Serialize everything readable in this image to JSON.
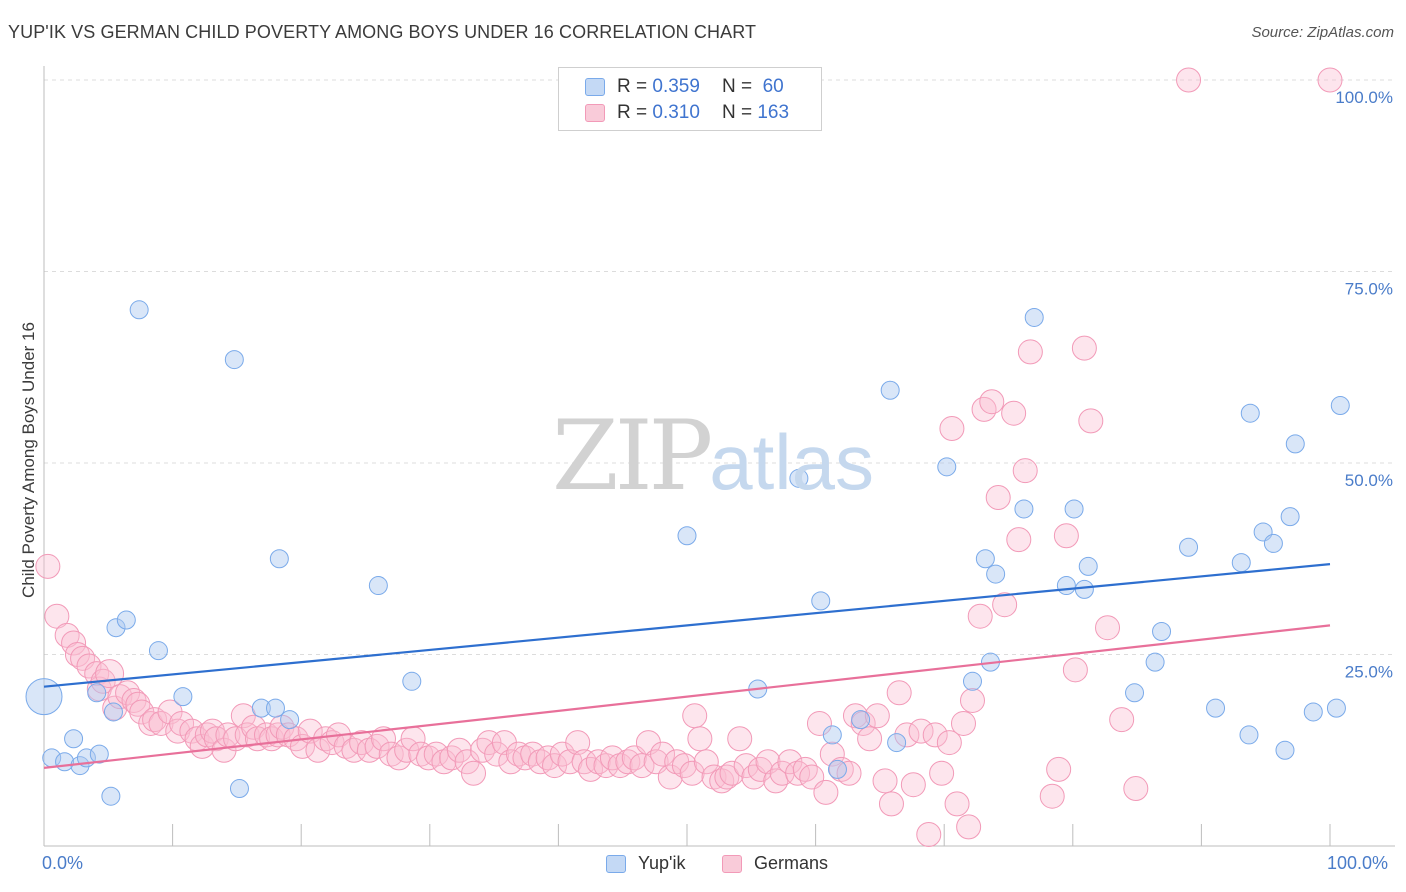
{
  "title": "YUP'IK VS GERMAN CHILD POVERTY AMONG BOYS UNDER 16 CORRELATION CHART",
  "source": "Source: ZipAtlas.com",
  "watermark": {
    "zip": "ZIP",
    "atlas": "atlas"
  },
  "legend_top": {
    "rows": [
      {
        "r_label": "R = ",
        "r_value": "0.359",
        "n_label": "N = ",
        "n_value": "60"
      },
      {
        "r_label": "R = ",
        "r_value": "0.310",
        "n_label": "N = ",
        "n_value": "163"
      }
    ]
  },
  "legend_bottom": {
    "series1": "Yup'ik",
    "series2": "Germans"
  },
  "x_axis_labels": {
    "left": "0.0%",
    "right": "100.0%"
  },
  "chart_data": {
    "type": "scatter",
    "title": "YUP'IK VS GERMAN CHILD POVERTY AMONG BOYS UNDER 16 CORRELATION CHART",
    "xlabel": "",
    "ylabel": "Child Poverty Among Boys Under 16",
    "xlim": [
      0,
      100
    ],
    "ylim": [
      0,
      100
    ],
    "y_ticks": [
      25,
      50,
      75,
      100
    ],
    "y_tick_labels": [
      "25.0%",
      "50.0%",
      "75.0%",
      "100.0%"
    ],
    "grid": true,
    "legend_placement": "top-center",
    "colors": {
      "yupik": "#7aaaea",
      "germans": "#f29ab8",
      "yupik_line": "#2e6fcf",
      "germans_line": "#e8709a",
      "tick": "#4a7cc9"
    },
    "series": [
      {
        "name": "Yup'ik",
        "r": 0.359,
        "n": 60,
        "trend": [
          [
            0,
            20.8
          ],
          [
            100,
            36.8
          ]
        ],
        "points": [
          [
            0,
            19.5,
            18
          ],
          [
            0.6,
            11.5,
            9
          ],
          [
            1.6,
            11,
            9
          ],
          [
            2.3,
            14,
            9
          ],
          [
            2.8,
            10.5,
            9
          ],
          [
            3.3,
            11.5,
            9
          ],
          [
            4.1,
            20,
            9
          ],
          [
            4.3,
            12,
            9
          ],
          [
            5.2,
            6.5,
            9
          ],
          [
            5.4,
            17.5,
            9
          ],
          [
            5.6,
            28.5,
            9
          ],
          [
            6.4,
            29.5,
            9
          ],
          [
            7.4,
            70,
            9
          ],
          [
            8.9,
            25.5,
            9
          ],
          [
            10.8,
            19.5,
            9
          ],
          [
            14.8,
            63.5,
            9
          ],
          [
            15.2,
            7.5,
            9
          ],
          [
            16.9,
            18,
            9
          ],
          [
            18,
            18,
            9
          ],
          [
            18.3,
            37.5,
            9
          ],
          [
            19.1,
            16.5,
            9
          ],
          [
            26,
            34,
            9
          ],
          [
            28.6,
            21.5,
            9
          ],
          [
            50,
            40.5,
            9
          ],
          [
            55.5,
            20.5,
            9
          ],
          [
            58.7,
            48,
            9
          ],
          [
            60.4,
            32,
            9
          ],
          [
            61.3,
            14.5,
            9
          ],
          [
            61.7,
            10,
            9
          ],
          [
            63.5,
            16.5,
            9
          ],
          [
            65.8,
            59.5,
            9
          ],
          [
            66.3,
            13.5,
            9
          ],
          [
            70.2,
            49.5,
            9
          ],
          [
            72.2,
            21.5,
            9
          ],
          [
            73.2,
            37.5,
            9
          ],
          [
            73.6,
            24,
            9
          ],
          [
            74,
            35.5,
            9
          ],
          [
            76.2,
            44,
            9
          ],
          [
            77,
            69,
            9
          ],
          [
            79.5,
            34,
            9
          ],
          [
            80.1,
            44,
            9
          ],
          [
            80.9,
            33.5,
            9
          ],
          [
            81.2,
            36.5,
            9
          ],
          [
            84.8,
            20,
            9
          ],
          [
            86.4,
            24,
            9
          ],
          [
            86.9,
            28,
            9
          ],
          [
            89,
            39,
            9
          ],
          [
            91.1,
            18,
            9
          ],
          [
            93.1,
            37,
            9
          ],
          [
            93.7,
            14.5,
            9
          ],
          [
            93.8,
            56.5,
            9
          ],
          [
            94.8,
            41,
            9
          ],
          [
            95.6,
            39.5,
            9
          ],
          [
            96.5,
            12.5,
            9
          ],
          [
            96.9,
            43,
            9
          ],
          [
            97.3,
            52.5,
            9
          ],
          [
            98.7,
            17.5,
            9
          ],
          [
            100.5,
            18,
            9
          ],
          [
            100.8,
            57.5,
            9
          ]
        ]
      },
      {
        "name": "Germans",
        "r": 0.31,
        "n": 163,
        "trend": [
          [
            0,
            10.2
          ],
          [
            100,
            28.8
          ]
        ],
        "points": [
          [
            0.3,
            36.5,
            12
          ],
          [
            1,
            30,
            12
          ],
          [
            1.8,
            27.5,
            12
          ],
          [
            2.3,
            26.5,
            12
          ],
          [
            2.6,
            25,
            12
          ],
          [
            3,
            24.5,
            12
          ],
          [
            3.5,
            23.5,
            12
          ],
          [
            4.1,
            22.5,
            12
          ],
          [
            4.3,
            20.5,
            12
          ],
          [
            4.6,
            21.5,
            12
          ],
          [
            5.1,
            22.5,
            14
          ],
          [
            5.5,
            18,
            12
          ],
          [
            5.9,
            19.5,
            12
          ],
          [
            6.5,
            20,
            12
          ],
          [
            7,
            19,
            12
          ],
          [
            7.3,
            18.5,
            12
          ],
          [
            7.6,
            17.5,
            12
          ],
          [
            8.3,
            16,
            12
          ],
          [
            8.6,
            16.5,
            12
          ],
          [
            9.1,
            16,
            12
          ],
          [
            9.8,
            17.5,
            12
          ],
          [
            10.4,
            15,
            12
          ],
          [
            10.7,
            16,
            12
          ],
          [
            11.5,
            15,
            12
          ],
          [
            11.9,
            14,
            12
          ],
          [
            12.3,
            13,
            12
          ],
          [
            12.7,
            14.5,
            12
          ],
          [
            13.1,
            15,
            12
          ],
          [
            13.4,
            14,
            12
          ],
          [
            14,
            12.5,
            12
          ],
          [
            14.3,
            14.5,
            12
          ],
          [
            14.9,
            14,
            12
          ],
          [
            15.5,
            17,
            12
          ],
          [
            15.8,
            14.5,
            12
          ],
          [
            16.3,
            15.5,
            12
          ],
          [
            16.6,
            14,
            12
          ],
          [
            17.3,
            14.5,
            12
          ],
          [
            17.7,
            14,
            12
          ],
          [
            18.2,
            14.5,
            12
          ],
          [
            18.5,
            15.5,
            12
          ],
          [
            19,
            14.5,
            12
          ],
          [
            19.6,
            14,
            12
          ],
          [
            20.1,
            13,
            12
          ],
          [
            20.7,
            15,
            12
          ],
          [
            21.3,
            12.5,
            12
          ],
          [
            21.9,
            14,
            12
          ],
          [
            22.4,
            13.5,
            12
          ],
          [
            22.9,
            14.5,
            12
          ],
          [
            23.5,
            13,
            12
          ],
          [
            24.1,
            12.5,
            12
          ],
          [
            24.7,
            13.5,
            12
          ],
          [
            25.3,
            12.5,
            12
          ],
          [
            25.9,
            13,
            12
          ],
          [
            26.4,
            14,
            12
          ],
          [
            27,
            12,
            12
          ],
          [
            27.6,
            11.5,
            12
          ],
          [
            28.2,
            12.5,
            12
          ],
          [
            28.7,
            14,
            12
          ],
          [
            29.3,
            12,
            12
          ],
          [
            29.9,
            11.5,
            12
          ],
          [
            30.5,
            12,
            12
          ],
          [
            31.1,
            11,
            12
          ],
          [
            31.7,
            11.5,
            12
          ],
          [
            32.3,
            12.5,
            12
          ],
          [
            32.9,
            11,
            12
          ],
          [
            33.4,
            9.5,
            12
          ],
          [
            34.1,
            12.5,
            12
          ],
          [
            34.6,
            13.5,
            12
          ],
          [
            35.2,
            12,
            12
          ],
          [
            35.8,
            13.5,
            12
          ],
          [
            36.3,
            11,
            12
          ],
          [
            36.9,
            12,
            12
          ],
          [
            37.4,
            11.5,
            12
          ],
          [
            38,
            12,
            12
          ],
          [
            38.6,
            11,
            12
          ],
          [
            39.2,
            11.5,
            12
          ],
          [
            39.7,
            10.5,
            12
          ],
          [
            40.3,
            12,
            12
          ],
          [
            40.9,
            11,
            12
          ],
          [
            41.5,
            13.5,
            12
          ],
          [
            42,
            11,
            12
          ],
          [
            42.5,
            10,
            12
          ],
          [
            43.1,
            11,
            12
          ],
          [
            43.7,
            10.5,
            12
          ],
          [
            44.2,
            11.5,
            12
          ],
          [
            44.8,
            10.5,
            12
          ],
          [
            45.4,
            11,
            12
          ],
          [
            45.9,
            11.5,
            12
          ],
          [
            46.5,
            10.5,
            12
          ],
          [
            47,
            13.5,
            12
          ],
          [
            47.6,
            11,
            12
          ],
          [
            48.1,
            12,
            12
          ],
          [
            48.7,
            9,
            12
          ],
          [
            49.2,
            11,
            12
          ],
          [
            49.8,
            10.5,
            12
          ],
          [
            50.4,
            9.5,
            12
          ],
          [
            50.6,
            17,
            12
          ],
          [
            51,
            14,
            12
          ],
          [
            51.5,
            11,
            12
          ],
          [
            52.1,
            9,
            12
          ],
          [
            52.7,
            8.5,
            12
          ],
          [
            53.1,
            9,
            12
          ],
          [
            53.5,
            9.5,
            12
          ],
          [
            54.1,
            14,
            12
          ],
          [
            54.6,
            10.5,
            12
          ],
          [
            55.2,
            9,
            12
          ],
          [
            55.7,
            10,
            12
          ],
          [
            56.3,
            11,
            12
          ],
          [
            56.9,
            8.5,
            12
          ],
          [
            57.4,
            9.5,
            12
          ],
          [
            58,
            11,
            12
          ],
          [
            58.6,
            9.5,
            12
          ],
          [
            59.2,
            10,
            12
          ],
          [
            59.7,
            9,
            12
          ],
          [
            60.3,
            16,
            12
          ],
          [
            60.8,
            7,
            12
          ],
          [
            61.3,
            12,
            12
          ],
          [
            62,
            10,
            12
          ],
          [
            62.6,
            9.5,
            12
          ],
          [
            63.1,
            17,
            12
          ],
          [
            63.7,
            16,
            12
          ],
          [
            64.2,
            14,
            12
          ],
          [
            64.8,
            17,
            12
          ],
          [
            65.4,
            8.5,
            12
          ],
          [
            65.9,
            5.5,
            12
          ],
          [
            66.5,
            20,
            12
          ],
          [
            67.1,
            14.5,
            12
          ],
          [
            67.6,
            8,
            12
          ],
          [
            68.2,
            15,
            12
          ],
          [
            68.8,
            1.5,
            12
          ],
          [
            69.3,
            14.5,
            12
          ],
          [
            69.8,
            9.5,
            12
          ],
          [
            70.4,
            13.5,
            12
          ],
          [
            70.6,
            54.5,
            12
          ],
          [
            71,
            5.5,
            12
          ],
          [
            71.5,
            16,
            12
          ],
          [
            71.9,
            2.5,
            12
          ],
          [
            72.2,
            19,
            12
          ],
          [
            72.8,
            30,
            12
          ],
          [
            73.1,
            57,
            12
          ],
          [
            73.7,
            58,
            12
          ],
          [
            74.2,
            45.5,
            12
          ],
          [
            74.7,
            31.5,
            12
          ],
          [
            75.4,
            56.5,
            12
          ],
          [
            75.8,
            40,
            12
          ],
          [
            76.3,
            49,
            12
          ],
          [
            76.7,
            64.5,
            12
          ],
          [
            78.4,
            6.5,
            12
          ],
          [
            78.9,
            10,
            12
          ],
          [
            79.5,
            40.5,
            12
          ],
          [
            80.2,
            23,
            12
          ],
          [
            80.9,
            65,
            12
          ],
          [
            81.4,
            55.5,
            12
          ],
          [
            82.7,
            28.5,
            12
          ],
          [
            83.8,
            16.5,
            12
          ],
          [
            84.9,
            7.5,
            12
          ],
          [
            89,
            100,
            12
          ],
          [
            100,
            100,
            12
          ]
        ]
      }
    ]
  }
}
